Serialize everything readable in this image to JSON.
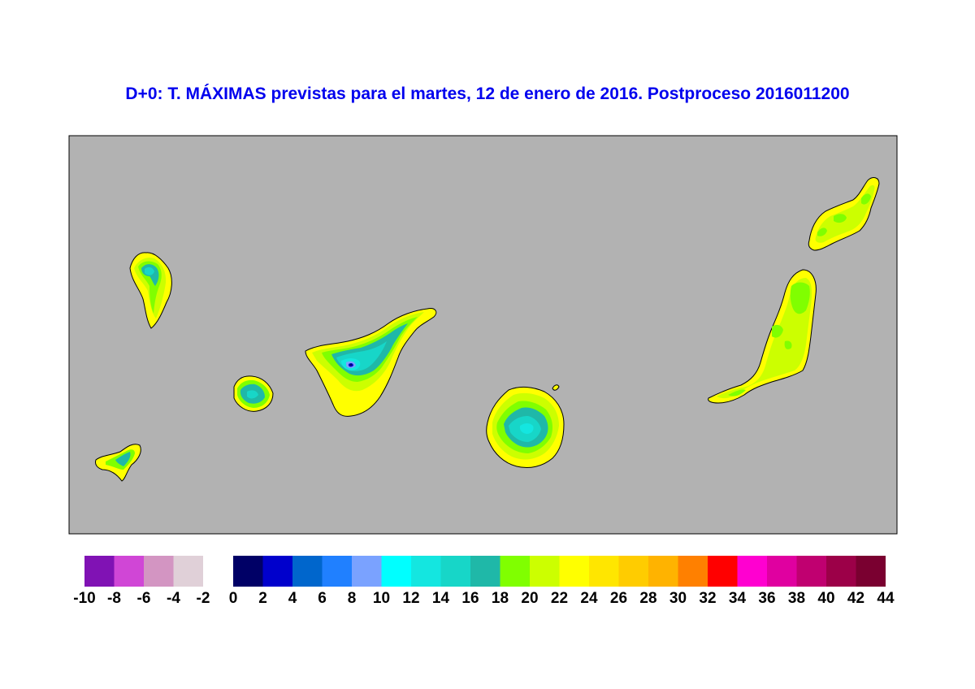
{
  "title": "D+0: T. MÁXIMAS previstas para el martes, 12 de enero de 2016. Postproceso 2016011200",
  "map": {
    "background_color": "#b2b2b2",
    "islands": [
      "La Palma",
      "La Gomera",
      "El Hierro",
      "Tenerife",
      "Gran Canaria",
      "Fuerteventura",
      "Lanzarote"
    ]
  },
  "legend": {
    "negative_bins": [
      {
        "color": "#8012b4"
      },
      {
        "color": "#d046d6"
      },
      {
        "color": "#d395c2"
      },
      {
        "color": "#e0d0d8"
      }
    ],
    "positive_bins": [
      {
        "color": "#000066"
      },
      {
        "color": "#0000cc"
      },
      {
        "color": "#0066cc"
      },
      {
        "color": "#2080ff"
      },
      {
        "color": "#7aa2ff"
      },
      {
        "color": "#00ffff"
      },
      {
        "color": "#14e6e0"
      },
      {
        "color": "#17d6c8"
      },
      {
        "color": "#1fb8a8"
      },
      {
        "color": "#80ff00"
      },
      {
        "color": "#ccff00"
      },
      {
        "color": "#ffff00"
      },
      {
        "color": "#ffe600"
      },
      {
        "color": "#ffcc00"
      },
      {
        "color": "#ffb300"
      },
      {
        "color": "#ff8000"
      },
      {
        "color": "#ff0000"
      },
      {
        "color": "#ff00d0"
      },
      {
        "color": "#e000a0"
      },
      {
        "color": "#c00070"
      },
      {
        "color": "#9c0048"
      },
      {
        "color": "#7a0030"
      }
    ],
    "negative_labels": [
      "-10",
      "-8",
      "-6",
      "-4",
      "-2"
    ],
    "positive_labels": [
      "0",
      "2",
      "4",
      "6",
      "8",
      "10",
      "12",
      "14",
      "16",
      "18",
      "20",
      "22",
      "24",
      "26",
      "28",
      "30",
      "32",
      "34",
      "36",
      "38",
      "40",
      "42",
      "44"
    ]
  }
}
